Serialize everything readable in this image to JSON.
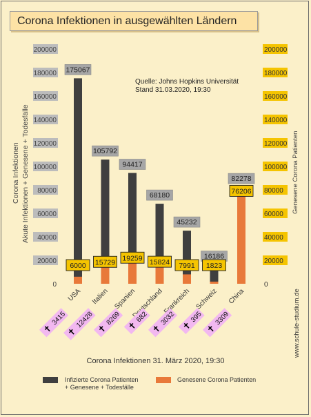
{
  "title": "Corona Infektionen in ausgewählten Ländern",
  "source_line1": "Quelle: Johns Hopkins Universität",
  "source_line2": "Stand 31.03.2020, 19:30",
  "left_axis_line1": "Corona Infektionen",
  "left_axis_line2": "Akute Infektionen + Genesene + Todesfälle",
  "right_axis_label": "Genesene Corona Patienten",
  "site_label": "www.schule-studium.de",
  "footer_caption": "Corona Infektionen 31. März 2020, 19:30",
  "legend": {
    "infected": "Infizierte Corona Patienten + Genesene + Todesfälle",
    "infected_line1": "Infizierte Corona Patienten",
    "infected_line2": "+ Genesene + Todesfälle",
    "recovered": "Genesene Corona Patienten"
  },
  "colors": {
    "infected_bar": "#3f3f3f",
    "recovered_bar": "#e8793a",
    "total_label_bg": "#a6a6a6",
    "recovered_label_bg": "#f5c400",
    "right_tick_bg": "#f5c400",
    "left_tick_bg": "#bcbcbc",
    "deaths_label_bg": "#f2b8f0",
    "background": "#fbf0c9"
  },
  "chart_data": {
    "type": "bar",
    "categories": [
      "USA",
      "Italien",
      "Spanien",
      "Deutschland",
      "Frankreich",
      "Schweiz",
      "China"
    ],
    "series": [
      {
        "name": "Infizierte Corona Patienten + Genesene + Todesfälle",
        "values": [
          175067,
          105792,
          94417,
          68180,
          45232,
          16186,
          82278
        ]
      },
      {
        "name": "Genesene Corona Patienten",
        "values": [
          6000,
          15729,
          19259,
          15824,
          7991,
          1823,
          76206
        ]
      }
    ],
    "deaths": [
      3415,
      12428,
      8269,
      682,
      3032,
      395,
      3309
    ],
    "death_labels": [
      "3415",
      "12428",
      "8269",
      "682",
      "3032",
      "395",
      "3309"
    ],
    "total_labels": [
      "175067",
      "105792",
      "94417",
      "68180",
      "45232",
      "16186",
      "82278"
    ],
    "recovered_labels": [
      "6000",
      "15729",
      "19259",
      "15824",
      "7991",
      "1823",
      "76206"
    ],
    "yticks": [
      0,
      20000,
      40000,
      60000,
      80000,
      100000,
      120000,
      140000,
      160000,
      180000,
      200000
    ],
    "ytick_labels": [
      "0",
      "20000",
      "40000",
      "60000",
      "80000",
      "100000",
      "120000",
      "140000",
      "160000",
      "180000",
      "200000"
    ],
    "ylim": [
      0,
      200000
    ],
    "y2lim": [
      0,
      200000
    ],
    "ylabel": "Akute Infektionen + Genesene + Todesfälle",
    "y2label": "Genesene Corona Patienten",
    "grid": false,
    "legend_position": "bottom"
  }
}
